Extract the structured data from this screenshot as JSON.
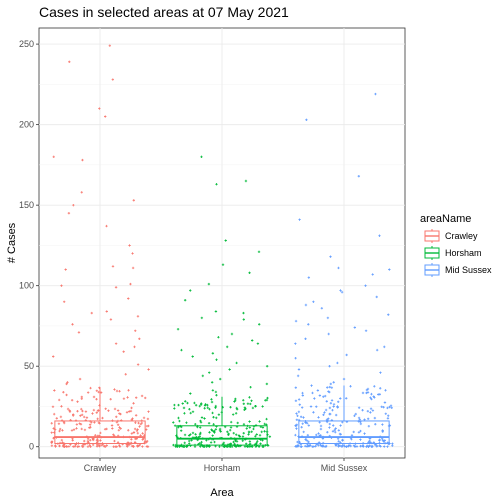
{
  "chart_data": {
    "type": "box",
    "title": "Cases in selected areas at 07 May 2021",
    "xlabel": "Area",
    "ylabel": "# Cases",
    "ylim": [
      -7,
      260
    ],
    "yticks": [
      0,
      50,
      100,
      150,
      200,
      250
    ],
    "grid": true,
    "legend": {
      "title": "areaName",
      "position": "right"
    },
    "categories": [
      "Crawley",
      "Horsham",
      "Mid Sussex"
    ],
    "series": [
      {
        "name": "Crawley",
        "color": "#F8766D",
        "box": {
          "q1": 2,
          "median": 6,
          "q3": 16,
          "whisker_low": 0,
          "whisker_high": 37
        },
        "outliers": [
          249,
          239,
          228,
          210,
          205,
          180,
          178,
          158,
          153,
          150,
          145,
          137,
          125,
          120,
          112,
          111,
          110,
          101,
          100,
          99,
          92,
          90,
          84,
          83,
          81,
          79,
          76,
          72,
          71,
          67,
          64,
          62,
          59,
          56,
          51,
          48,
          45,
          42,
          40,
          39
        ]
      },
      {
        "name": "Horsham",
        "color": "#00BA38",
        "box": {
          "q1": 1,
          "median": 5,
          "q3": 13,
          "whisker_low": 0,
          "whisker_high": 31
        },
        "outliers": [
          180,
          165,
          163,
          128,
          121,
          113,
          108,
          101,
          97,
          91,
          84,
          83,
          80,
          79,
          76,
          73,
          70,
          68,
          66,
          64,
          62,
          60,
          58,
          56,
          54,
          52,
          50,
          48,
          46,
          44,
          42,
          40,
          39,
          37,
          35,
          34,
          33,
          32
        ]
      },
      {
        "name": "Mid Sussex",
        "color": "#619CFF",
        "box": {
          "q1": 2,
          "median": 6,
          "q3": 16,
          "whisker_low": 0,
          "whisker_high": 38
        },
        "outliers": [
          219,
          203,
          168,
          141,
          131,
          118,
          111,
          110,
          107,
          105,
          100,
          97,
          96,
          93,
          90,
          88,
          86,
          82,
          80,
          78,
          76,
          74,
          72,
          70,
          67,
          64,
          62,
          60,
          57,
          55,
          52,
          50,
          48,
          46,
          44,
          42,
          40,
          39
        ]
      }
    ]
  }
}
